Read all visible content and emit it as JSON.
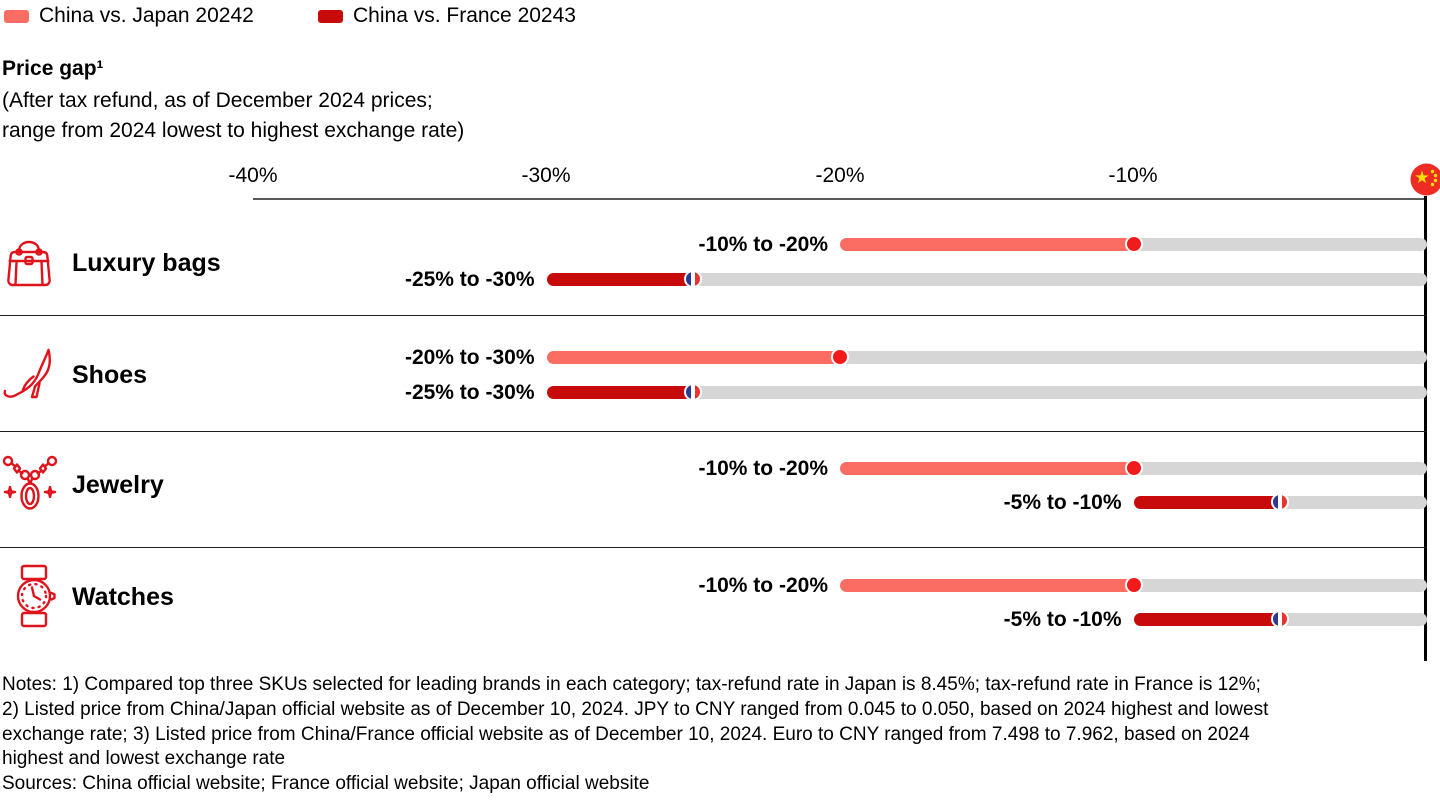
{
  "legend": {
    "items": [
      {
        "label": "China vs. Japan 20242",
        "color": "#FB6C63"
      },
      {
        "label": "China vs. France 20243",
        "color": "#C70B0B"
      }
    ]
  },
  "header": {
    "title": "Price gap¹",
    "subtitle_line1": "(After tax refund, as of December 2024 prices;",
    "subtitle_line2": "range from 2024 lowest to highest exchange rate)"
  },
  "axis": {
    "tick_labels": [
      "-40%",
      "-30%",
      "-20%",
      "-10%"
    ],
    "right_end_marker": "china-flag"
  },
  "chart_data": {
    "type": "bar",
    "variant": "horizontal-range-bars-with-end-dot",
    "title": "Price gap (after tax refund, as of December 2024 prices; range from 2024 lowest to highest exchange rate)",
    "xlabel": "",
    "unit": "%",
    "xlim": [
      -40,
      0
    ],
    "tick_values": [
      -40,
      -30,
      -20,
      -10
    ],
    "grid": false,
    "categories": [
      "Luxury bags",
      "Shoes",
      "Jewelry",
      "Watches"
    ],
    "category_icons": [
      "handbag-icon",
      "high-heel-shoe-icon",
      "necklace-icon",
      "wristwatch-icon"
    ],
    "track_color": "#D6D6D6",
    "series": [
      {
        "name": "China vs. Japan 2024",
        "color": "#FB6C63",
        "marker": "japan-red-dot",
        "ranges": [
          [
            -20,
            -10
          ],
          [
            -30,
            -20
          ],
          [
            -20,
            -10
          ],
          [
            -20,
            -10
          ]
        ],
        "labels": [
          "-10% to -20%",
          "-20% to -30%",
          "-10% to -20%",
          "-10% to -20%"
        ]
      },
      {
        "name": "China vs. France 2024",
        "color": "#C70B0B",
        "marker": "france-flag-dot",
        "ranges": [
          [
            -30,
            -25
          ],
          [
            -30,
            -25
          ],
          [
            -10,
            -5
          ],
          [
            -10,
            -5
          ]
        ],
        "labels": [
          "-25% to -30%",
          "-25% to -30%",
          "-5% to -10%",
          "-5% to -10%"
        ]
      }
    ]
  },
  "notes": {
    "lines": [
      "Notes: 1) Compared top three SKUs selected for leading brands in each category; tax-refund rate in Japan is 8.45%; tax-refund rate in France is 12%;",
      "2) Listed price from China/Japan official website as of December 10, 2024. JPY to CNY ranged from 0.045 to 0.050, based on 2024 highest and lowest",
      "exchange rate; 3) Listed price from China/France official website as of December 10, 2024. Euro to CNY ranged from 7.498 to 7.962, based on 2024",
      "highest and lowest exchange rate",
      "Sources: China official website; France official website; Japan official website"
    ]
  }
}
